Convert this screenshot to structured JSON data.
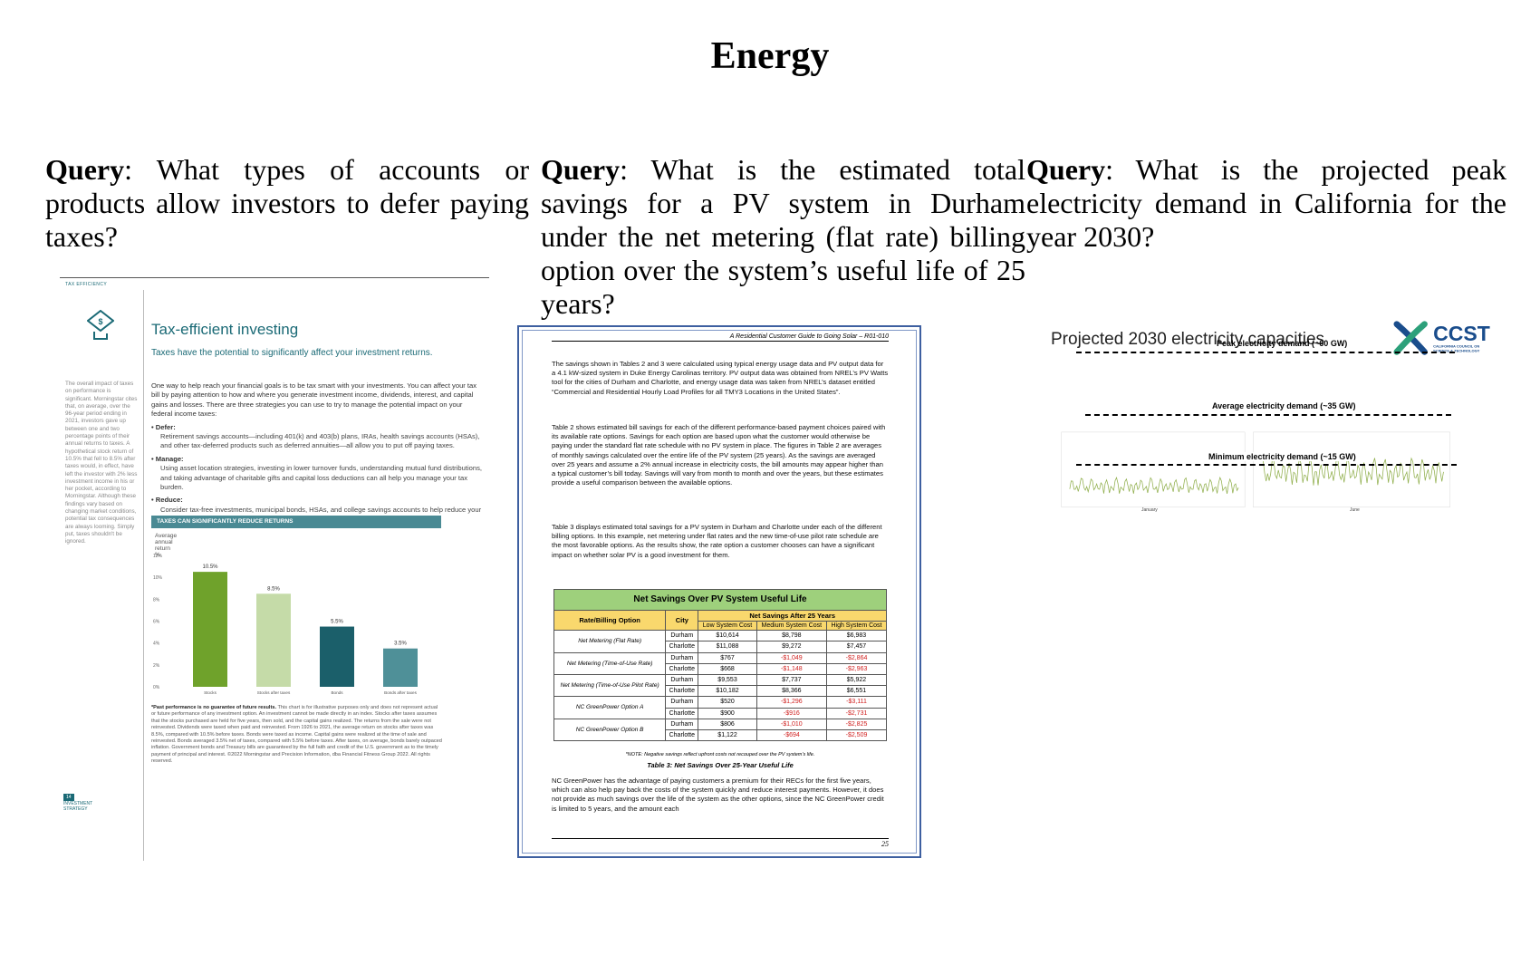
{
  "page_title": "Energy",
  "queries": [
    {
      "label": "Query",
      "text": ":  What types of accounts or products allow investors to defer paying taxes?"
    },
    {
      "label": "Query",
      "text": ": What is the estimated total savings for a PV system in Durham under the net metering (flat rate) billing option over the system’s useful life of 25 years?"
    },
    {
      "label": "Query",
      "text": ":  What is the projected peak electricity demand in California for the year 2030?"
    }
  ],
  "panel1": {
    "header_label": "TAX EFFICIENCY",
    "title": "Tax-efficient investing",
    "subtitle": "Taxes have the potential to significantly affect your investment returns.",
    "sidebar_text": "The overall impact of taxes on performance is significant. Morningstar cites that, on average, over the 96-year period ending in 2021, investors gave up between one and two percentage points of their annual returns to taxes. A hypothetical stock return of 10.5% that fell to 8.5% after taxes would, in effect, have left the investor with 2% less investment income in his or her pocket, according to Morningstar. Although these findings vary based on changing market conditions, potential tax consequences are always looming. Simply put, taxes shouldn't be ignored.",
    "intro": "One way to help reach your financial goals is to be tax smart with your investments. You can affect your tax bill by paying attention to how and where you generate investment income, dividends, interest, and capital gains and losses. There are three strategies you can use to try to manage the potential impact on your federal income taxes:",
    "bullets": [
      {
        "head": "Defer:",
        "text": "Retirement savings accounts—including 401(k) and 403(b) plans, IRAs, health savings accounts (HSAs), and other tax-deferred products such as deferred annuities—all allow you to put off paying taxes."
      },
      {
        "head": "Manage:",
        "text": "Using asset location strategies, investing in lower turnover funds, understanding mutual fund distributions, and taking advantage of charitable gifts and capital loss deductions can all help you manage your tax burden."
      },
      {
        "head": "Reduce:",
        "text": "Consider tax-free investments, municipal bonds, HSAs, and college savings accounts to help reduce your taxes."
      }
    ],
    "chart_header": "TAXES CAN SIGNIFICANTLY REDUCE RETURNS",
    "chart_subtitle": "Average annual return %",
    "footnote_bold": "*Past performance is no guarantee of future results.",
    "footnote": " This chart is for illustrative purposes only and does not represent actual or future performance of any investment option. An investment cannot be made directly in an index. Stocks after taxes assumes that the stocks purchased are held for five years, then sold, and the capital gains realized. The returns from the sale were not reinvested. Dividends were taxed when paid and reinvested. From 1926 to 2021, the average return on stocks after taxes was 8.5%, compared with 10.5% before taxes. Bonds were taxed as income. Capital gains were realized at the time of sale and reinvested. Bonds averaged 3.5% net of taxes, compared with 5.5% before taxes. After taxes, on average, bonds barely outpaced inflation. Government bonds and Treasury bills are guaranteed by the full faith and credit of the U.S. government as to the timely payment of principal and interest. ©2022 Morningstar and Precision Information, dba Financial Fitness Group 2022. All rights reserved.",
    "page_label": "INVESTMENT STRATEGY",
    "page_number": "14"
  },
  "panel2": {
    "running_head": "A Residential Customer Guide to Going Solar – R01-010",
    "paragraphs": [
      "The savings shown in Tables 2 and 3 were calculated using typical energy usage data and PV output data for a 4.1 kW-sized system in Duke Energy Carolinas territory. PV output data was obtained from NREL’s PV Watts tool for the cities of Durham and Charlotte, and energy usage data was taken from NREL’s dataset entitled “Commercial and Residential Hourly Load Profiles for all TMY3 Locations in the United States”.",
      "Table 2 shows estimated bill savings for each of the different performance-based payment choices paired with its available rate options. Savings for each option are based upon what the customer would otherwise be paying under the standard flat rate schedule with no PV system in place. The figures in Table 2 are averages of monthly savings calculated over the entire life of the PV system (25 years). As the savings are averaged over 25 years and assume a 2% annual increase in electricity costs, the bill amounts may appear higher than a typical customer’s bill today. Savings will vary from month to month and over the years, but these estimates provide a useful comparison between the available options.",
      "Table 3 displays estimated total savings for a PV system in Durham and Charlotte under each of the different billing options. In this example, net metering under flat rates and the new time-of-use pilot rate schedule are the most favorable options. As the results show, the rate option a customer chooses can have a significant impact on whether solar PV is a good investment for them.",
      "NC GreenPower has the advantage of paying customers a premium for their RECs for the first five years, which can also help pay back the costs of the system quickly and reduce interest payments. However, it does not provide as much savings over the life of the system as the other options, since the NC GreenPower credit is limited to 5 years, and the amount each"
    ],
    "table": {
      "title": "Net Savings Over PV System Useful Life",
      "col_option": "Rate/Billing Option",
      "col_city": "City",
      "group_header": "Net Savings After 25 Years",
      "sub_headers": [
        "Low System Cost",
        "Medium System Cost",
        "High System Cost"
      ],
      "rows": [
        {
          "option": "Net Metering (Flat Rate)",
          "city": "Durham",
          "low": "$10,614",
          "med": "$8,798",
          "high": "$6,983"
        },
        {
          "option": "",
          "city": "Charlotte",
          "low": "$11,088",
          "med": "$9,272",
          "high": "$7,457"
        },
        {
          "option": "Net Metering (Time-of-Use Rate)",
          "city": "Durham",
          "low": "$767",
          "med": "-$1,049",
          "high": "-$2,864"
        },
        {
          "option": "",
          "city": "Charlotte",
          "low": "$668",
          "med": "-$1,148",
          "high": "-$2,963"
        },
        {
          "option": "Net Metering (Time-of-Use Pilot Rate)",
          "city": "Durham",
          "low": "$9,553",
          "med": "$7,737",
          "high": "$5,922"
        },
        {
          "option": "",
          "city": "Charlotte",
          "low": "$10,182",
          "med": "$8,366",
          "high": "$6,551"
        },
        {
          "option": "NC GreenPower Option A",
          "city": "Durham",
          "low": "$520",
          "med": "-$1,296",
          "high": "-$3,111"
        },
        {
          "option": "",
          "city": "Charlotte",
          "low": "$900",
          "med": "-$916",
          "high": "-$2,731"
        },
        {
          "option": "NC GreenPower Option B",
          "city": "Durham",
          "low": "$806",
          "med": "-$1,010",
          "high": "-$2,825"
        },
        {
          "option": "",
          "city": "Charlotte",
          "low": "$1,122",
          "med": "-$694",
          "high": "-$2,509"
        }
      ],
      "note": "*NOTE: Negative savings reflect upfront costs not recouped over the PV system’s life.",
      "caption": "Table 3: Net Savings Over 25-Year Useful Life"
    },
    "page_number": "25"
  },
  "panel3": {
    "title": "Projected 2030 electricity capacities",
    "logo_text": "CCST",
    "logo_subtext": "CALIFORNIA COUNCIL ON SCIENCE & TECHNOLOGY",
    "peak_label": "Peak electricity demand (~60 GW)",
    "avg_label": "Average electricity demand (~35 GW)",
    "min_label": "Minimum electricity demand (~15 GW)",
    "left_xlabel": "January",
    "right_xlabel": "June"
  },
  "chart_data": {
    "type": "bar",
    "categories": [
      "Stocks",
      "Stocks after taxes",
      "Bonds",
      "Bonds after taxes"
    ],
    "values": [
      10.5,
      8.5,
      5.5,
      3.5
    ],
    "value_labels": [
      "10.5%",
      "8.5%",
      "5.5%",
      "3.5%"
    ],
    "colors": [
      "#6fa22b",
      "#c5dba8",
      "#1b5f6a",
      "#4f9098"
    ],
    "ylim": [
      0,
      12
    ],
    "yticks": [
      "0%",
      "2%",
      "4%",
      "6%",
      "8%",
      "10%",
      "12%"
    ],
    "title": "TAXES CAN SIGNIFICANTLY REDUCE RETURNS",
    "ylabel": "Average annual return %",
    "grid": false
  }
}
